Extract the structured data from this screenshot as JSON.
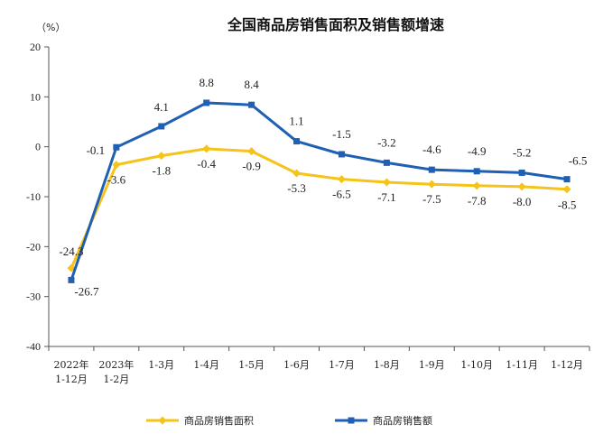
{
  "chart_data": {
    "type": "line",
    "title": "全国商品房销售面积及销售额增速",
    "unit_label": "（%）",
    "categories": [
      [
        "2022年",
        "1-12月"
      ],
      [
        "2023年",
        "1-2月"
      ],
      [
        "1-3月"
      ],
      [
        "1-4月"
      ],
      [
        "1-5月"
      ],
      [
        "1-6月"
      ],
      [
        "1-7月"
      ],
      [
        "1-8月"
      ],
      [
        "1-9月"
      ],
      [
        "1-10月"
      ],
      [
        "1-11月"
      ],
      [
        "1-12月"
      ]
    ],
    "ylim": [
      -40,
      20
    ],
    "yticks": [
      20,
      10,
      0,
      -10,
      -20,
      -30,
      -40
    ],
    "grid": false,
    "legend_position": "bottom",
    "series": [
      {
        "name": "商品房销售面积",
        "color": "#f5c31a",
        "marker": "diamond",
        "values": [
          -24.3,
          -3.6,
          -1.8,
          -0.4,
          -0.9,
          -5.3,
          -6.5,
          -7.1,
          -7.5,
          -7.8,
          -8.0,
          -8.5
        ],
        "labels": [
          "-24.3",
          "-3.6",
          "-1.8",
          "-0.4",
          "-0.9",
          "-5.3",
          "-6.5",
          "-7.1",
          "-7.5",
          "-7.8",
          "-8.0",
          "-8.5"
        ]
      },
      {
        "name": "商品房销售额",
        "color": "#1f5fb4",
        "marker": "square",
        "values": [
          -26.7,
          -0.1,
          4.1,
          8.8,
          8.4,
          1.1,
          -1.5,
          -3.2,
          -4.6,
          -4.9,
          -5.2,
          -6.5
        ],
        "labels": [
          "-26.7",
          "-0.1",
          "4.1",
          "8.8",
          "8.4",
          "1.1",
          "-1.5",
          "-3.2",
          "-4.6",
          "-4.9",
          "-5.2",
          "-6.5"
        ]
      }
    ]
  }
}
